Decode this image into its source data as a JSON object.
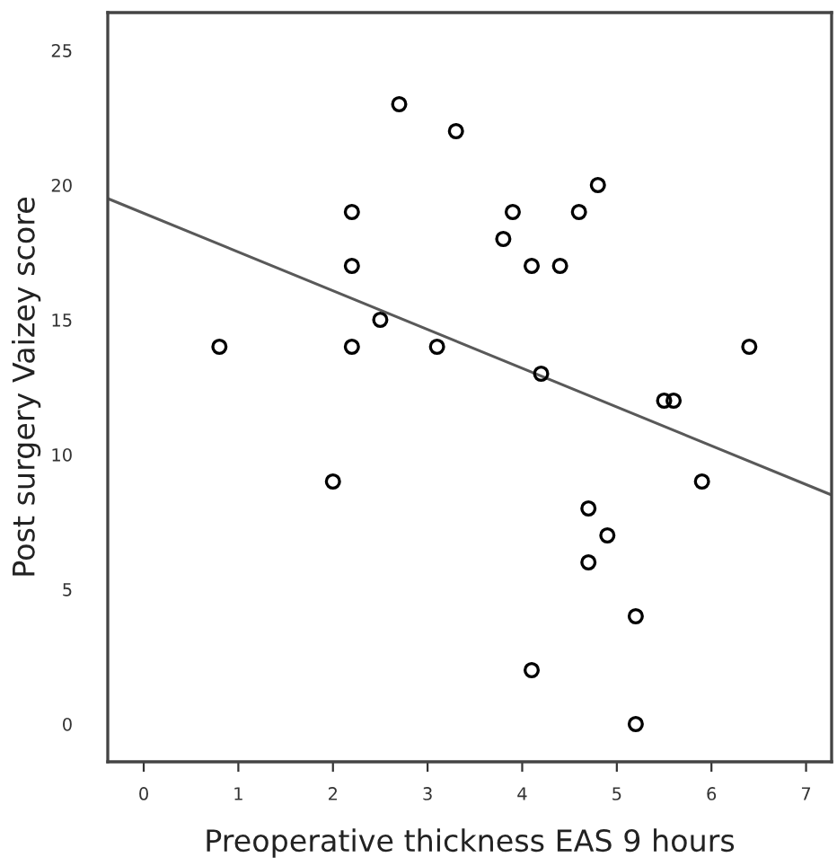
{
  "chart_data": {
    "type": "scatter",
    "xlabel": "Preoperative thickness EAS 9 hours",
    "ylabel": "Post surgery Vaizey score",
    "xlim": [
      -0.38,
      7.27
    ],
    "ylim": [
      -1.4,
      26.4
    ],
    "xticks": [
      0,
      1,
      2,
      3,
      4,
      5,
      6,
      7
    ],
    "yticks": [
      0,
      5,
      10,
      15,
      20,
      25
    ],
    "grid": false,
    "series": [
      {
        "marker": "circle",
        "color": "#000000",
        "x": [
          0.8,
          2.0,
          2.2,
          2.2,
          2.2,
          2.5,
          2.7,
          3.1,
          3.3,
          3.8,
          3.9,
          4.1,
          4.1,
          4.2,
          4.4,
          4.6,
          4.8,
          4.7,
          4.7,
          4.9,
          5.2,
          5.2,
          5.5,
          5.6,
          5.9,
          6.4
        ],
        "values": [
          14,
          9,
          19,
          17,
          14,
          15,
          23,
          14,
          22,
          18,
          19,
          17,
          2,
          13,
          17,
          19,
          20,
          8,
          6,
          7,
          4,
          0,
          12,
          12,
          9,
          14
        ]
      },
      {
        "type": "line",
        "marker": "none",
        "color": "#595959",
        "x": [
          -0.38,
          7.27
        ],
        "values": [
          19.5,
          8.5
        ]
      }
    ]
  }
}
